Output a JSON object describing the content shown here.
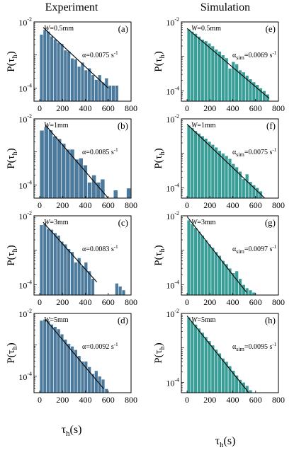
{
  "figure": {
    "col_titles": [
      "Experiment",
      "Simulation"
    ],
    "ylabel": "P(τh)",
    "ylabel_main": "P(τ",
    "ylabel_sub": "h",
    "ylabel_close": ")",
    "xlabel_main": "τ",
    "xlabel_sub": "h",
    "xlabel_rest": "(s)"
  },
  "colors": {
    "experiment": "#4b7a9c",
    "simulation": "#3a9e98",
    "fit_line": "#000000"
  },
  "chart_data": [
    {
      "type": "bar",
      "panel": "(a)",
      "width_label": "W=0.5mm",
      "fit_prefix": "α",
      "fit_sub": "",
      "fit_value": "=0.0075 s",
      "fit_exp": "-1",
      "xticks": [
        0,
        200,
        400,
        600,
        800
      ],
      "xlim": [
        -50,
        800
      ],
      "yscale": "log",
      "ylim": [
        4e-05,
        0.01
      ],
      "ytick_exponents": [
        -2,
        -4
      ],
      "bin_width": 30,
      "bins": [
        0,
        30,
        60,
        90,
        120,
        150,
        180,
        210,
        240,
        270,
        300,
        330,
        360,
        390,
        420,
        450,
        480,
        510,
        540,
        570,
        600,
        630,
        660
      ],
      "values": [
        0.0042,
        0.0058,
        0.0052,
        0.0037,
        0.003,
        0.0024,
        0.0022,
        0.0014,
        0.0013,
        0.0008,
        0.00075,
        0.00045,
        0.0006,
        0.00035,
        0.0004,
        0.00025,
        0.00018,
        0.00025,
        0.00015,
        0.0002,
        0.00012,
        0.00012,
        0.00012
      ],
      "fit": {
        "x": [
          30,
          600
        ],
        "y": [
          0.0068,
          0.0001
        ]
      }
    },
    {
      "type": "bar",
      "panel": "(e)",
      "width_label": "W=0.5mm",
      "fit_prefix": "α",
      "fit_sub": "sim",
      "fit_value": "=0.0069 s",
      "fit_exp": "-1",
      "xticks": [
        0,
        200,
        400,
        600,
        800
      ],
      "xlim": [
        -50,
        800
      ],
      "yscale": "log",
      "ylim": [
        5e-05,
        0.01
      ],
      "ytick_exponents": [
        -2,
        -4
      ],
      "bin_width": 30,
      "bins": [
        0,
        30,
        60,
        90,
        120,
        150,
        180,
        210,
        240,
        270,
        300,
        330,
        360,
        390,
        420,
        450,
        480,
        510,
        540,
        570,
        600,
        630,
        660,
        690
      ],
      "values": [
        0.0062,
        0.0053,
        0.0046,
        0.0038,
        0.0031,
        0.0028,
        0.0024,
        0.002,
        0.0016,
        0.0014,
        0.0011,
        0.0009,
        0.00045,
        0.0007,
        0.0006,
        0.0004,
        0.00035,
        0.00028,
        0.00022,
        0.00018,
        0.00015,
        0.00012,
        0.0001,
        8e-05
      ],
      "fit": {
        "x": [
          0,
          720
        ],
        "y": [
          0.0065,
          6e-05
        ]
      }
    },
    {
      "type": "bar",
      "panel": "(b)",
      "width_label": "W=1mm",
      "fit_prefix": "α",
      "fit_sub": "",
      "fit_value": "=0.0085 s",
      "fit_exp": "-1",
      "xticks": [
        0,
        200,
        400,
        600,
        800
      ],
      "xlim": [
        -50,
        800
      ],
      "yscale": "log",
      "ylim": [
        4e-05,
        0.01
      ],
      "ytick_exponents": [
        -2,
        -4
      ],
      "bin_width": 38,
      "bins": [
        0,
        38,
        76,
        114,
        152,
        190,
        228,
        266,
        304,
        342,
        380,
        418,
        456,
        494,
        532,
        570,
        608,
        646,
        684,
        722,
        760
      ],
      "values": [
        0.0045,
        0.0058,
        0.0046,
        0.003,
        0.0025,
        0.0018,
        0.0012,
        0.0012,
        0.0006,
        0.00065,
        0.0004,
        0.00012,
        0.0002,
        0.00012,
        0.00015,
        0.0,
        0.0,
        7e-05,
        0.0,
        0.0,
        8e-05
      ],
      "fit": {
        "x": [
          50,
          600
        ],
        "y": [
          0.0065,
          4e-05
        ]
      }
    },
    {
      "type": "bar",
      "panel": "(f)",
      "width_label": "W=1mm",
      "fit_prefix": "α",
      "fit_sub": "sim",
      "fit_value": "=0.0075 s",
      "fit_exp": "-1",
      "xticks": [
        0,
        200,
        400,
        600,
        800
      ],
      "xlim": [
        -50,
        800
      ],
      "yscale": "log",
      "ylim": [
        5e-05,
        0.01
      ],
      "ytick_exponents": [
        -2,
        -4
      ],
      "bin_width": 30,
      "bins": [
        0,
        30,
        60,
        90,
        120,
        150,
        180,
        210,
        240,
        270,
        300,
        330,
        360,
        390,
        420,
        450,
        480,
        510,
        540,
        570,
        600,
        630
      ],
      "values": [
        0.0065,
        0.0055,
        0.0045,
        0.0038,
        0.0032,
        0.0027,
        0.0022,
        0.0018,
        0.0015,
        0.0012,
        0.001,
        0.00085,
        0.0007,
        0.0005,
        0.0004,
        0.0003,
        0.00018,
        0.00025,
        0.00015,
        0.00012,
        0.0001,
        8e-05
      ],
      "fit": {
        "x": [
          0,
          680
        ],
        "y": [
          0.007,
          5e-05
        ]
      }
    },
    {
      "type": "bar",
      "panel": "(c)",
      "width_label": "W=3mm",
      "fit_prefix": "α",
      "fit_sub": "",
      "fit_value": "=0.0083 s",
      "fit_exp": "-1",
      "xticks": [
        0,
        200,
        400,
        600,
        800
      ],
      "xlim": [
        -50,
        800
      ],
      "yscale": "log",
      "ylim": [
        5e-05,
        0.01
      ],
      "ytick_exponents": [
        -2,
        -4
      ],
      "bin_width": 30,
      "bins": [
        0,
        30,
        60,
        90,
        120,
        150,
        180,
        210,
        240,
        270,
        300,
        330,
        360,
        390,
        420,
        450,
        480,
        510,
        540,
        570,
        600,
        630,
        660,
        690,
        720
      ],
      "values": [
        0.0055,
        0.0058,
        0.0042,
        0.004,
        0.0032,
        0.0027,
        0.0018,
        0.0015,
        0.0011,
        0.0009,
        0.00045,
        0.0006,
        0.00035,
        0.00045,
        0.00025,
        0.00015,
        0.0,
        0.0,
        0.0,
        0.0,
        0.0,
        0.0,
        0.00011,
        9e-05,
        7e-05
      ],
      "fit": {
        "x": [
          30,
          500
        ],
        "y": [
          0.0065,
          0.00012
        ]
      }
    },
    {
      "type": "bar",
      "panel": "(g)",
      "width_label": "W=3mm",
      "fit_prefix": "α",
      "fit_sub": "sim",
      "fit_value": "=0.0097 s",
      "fit_exp": "-1",
      "xticks": [
        0,
        200,
        400,
        600,
        800
      ],
      "xlim": [
        -50,
        800
      ],
      "yscale": "log",
      "ylim": [
        5e-05,
        0.01
      ],
      "ytick_exponents": [
        -2,
        -4
      ],
      "bin_width": 30,
      "bins": [
        0,
        30,
        60,
        90,
        120,
        150,
        180,
        210,
        240,
        270,
        300,
        330,
        360,
        390,
        420,
        450,
        480,
        510,
        540,
        570
      ],
      "values": [
        0.0075,
        0.0058,
        0.0045,
        0.0035,
        0.0027,
        0.002,
        0.0015,
        0.0012,
        0.0009,
        0.0007,
        0.0005,
        0.0004,
        0.0003,
        0.00022,
        0.00025,
        0.00015,
        0.0001,
        8e-05,
        7e-05,
        6e-05
      ],
      "fit": {
        "x": [
          0,
          520
        ],
        "y": [
          0.0095,
          6e-05
        ]
      }
    },
    {
      "type": "bar",
      "panel": "(d)",
      "width_label": "W=5mm",
      "fit_prefix": "α",
      "fit_sub": "",
      "fit_value": "=0.0092 s",
      "fit_exp": "-1",
      "xticks": [
        0,
        200,
        400,
        600,
        800
      ],
      "xlim": [
        -50,
        800
      ],
      "yscale": "log",
      "ylim": [
        3e-05,
        0.01
      ],
      "ytick_exponents": [
        -2,
        -4
      ],
      "bin_width": 30,
      "bins": [
        0,
        30,
        60,
        90,
        120,
        150,
        180,
        210,
        240,
        270,
        300,
        330,
        360,
        390,
        420,
        450,
        480,
        510,
        540,
        570
      ],
      "values": [
        0.006,
        0.0065,
        0.0058,
        0.0045,
        0.0038,
        0.0032,
        0.0022,
        0.0015,
        0.0011,
        0.0009,
        0.0007,
        0.00045,
        0.0003,
        0.0003,
        0.0002,
        0.00012,
        0.00015,
        0.0001,
        8e-05,
        4e-05
      ],
      "fit": {
        "x": [
          50,
          560
        ],
        "y": [
          0.0065,
          4e-05
        ]
      }
    },
    {
      "type": "bar",
      "panel": "(h)",
      "width_label": "W=5mm",
      "fit_prefix": "α",
      "fit_sub": "sim",
      "fit_value": "=0.0095 s",
      "fit_exp": "-1",
      "xticks": [
        0,
        200,
        400,
        600,
        800
      ],
      "xlim": [
        -50,
        800
      ],
      "yscale": "log",
      "ylim": [
        5e-05,
        0.01
      ],
      "ytick_exponents": [
        -2,
        -4
      ],
      "bin_width": 30,
      "bins": [
        0,
        30,
        60,
        90,
        120,
        150,
        180,
        210,
        240,
        270,
        300,
        330,
        360,
        390,
        420,
        450,
        480,
        510,
        540
      ],
      "values": [
        0.0078,
        0.006,
        0.0048,
        0.0037,
        0.0028,
        0.0021,
        0.0016,
        0.0012,
        0.0009,
        0.0007,
        0.0005,
        0.0004,
        0.0003,
        0.00022,
        0.00016,
        0.00012,
        0.0001,
        8e-05,
        6e-05
      ],
      "fit": {
        "x": [
          0,
          540
        ],
        "y": [
          0.0085,
          5e-05
        ]
      }
    }
  ]
}
